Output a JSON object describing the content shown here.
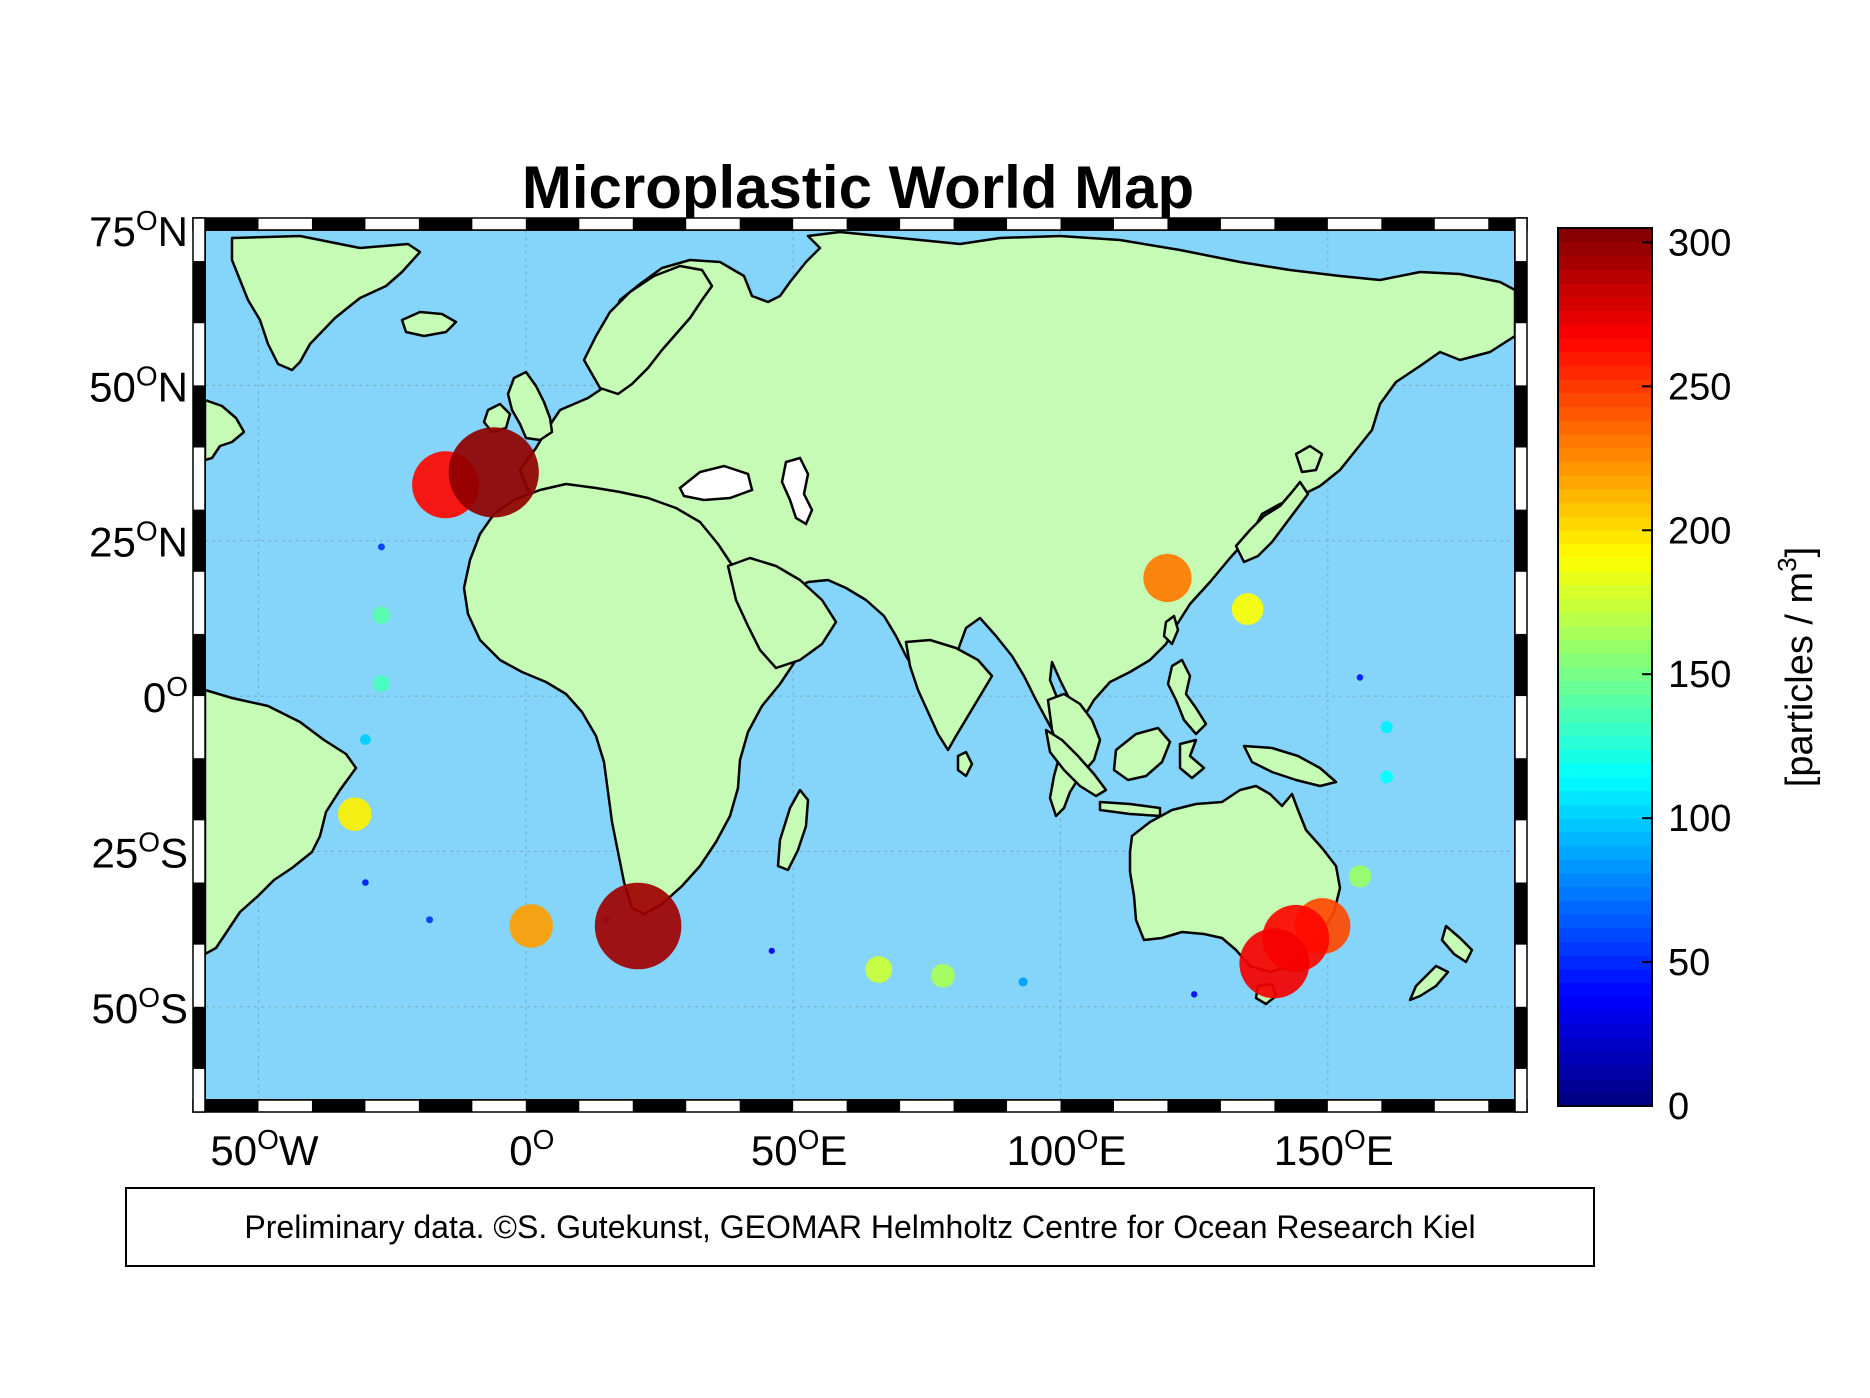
{
  "title": "Microplastic World Map",
  "credit": "Preliminary data. ©S. Gutekunst, GEOMAR Helmholtz Centre for Ocean Research Kiel",
  "colors": {
    "ocean": "#84d5f9",
    "land": "#c6fbb5",
    "coast": "#000000",
    "lake": "#ffffff"
  },
  "map": {
    "lon_range": [
      -60,
      185
    ],
    "lat_range": [
      -65,
      75
    ],
    "lon_ticks": [
      {
        "value": -50,
        "num": "50",
        "sup": "O",
        "hem": "W"
      },
      {
        "value": 0,
        "num": "0",
        "sup": "O",
        "hem": ""
      },
      {
        "value": 50,
        "num": "50",
        "sup": "O",
        "hem": "E"
      },
      {
        "value": 100,
        "num": "100",
        "sup": "O",
        "hem": "E"
      },
      {
        "value": 150,
        "num": "150",
        "sup": "O",
        "hem": "E"
      }
    ],
    "lat_ticks": [
      {
        "value": 75,
        "num": "75",
        "sup": "O",
        "hem": "N"
      },
      {
        "value": 50,
        "num": "50",
        "sup": "O",
        "hem": "N"
      },
      {
        "value": 25,
        "num": "25",
        "sup": "O",
        "hem": "N"
      },
      {
        "value": 0,
        "num": "0",
        "sup": "O",
        "hem": ""
      },
      {
        "value": -25,
        "num": "25",
        "sup": "O",
        "hem": "S"
      },
      {
        "value": -50,
        "num": "50",
        "sup": "O",
        "hem": "S"
      }
    ],
    "grid": true
  },
  "colorbar": {
    "min": 0,
    "max": 305,
    "ticks": [
      0,
      50,
      100,
      150,
      200,
      250,
      300
    ],
    "label_prefix": "[particles / m",
    "label_sup": "3",
    "label_suffix": "]",
    "colormap": "jet",
    "levels": 64
  },
  "chart_data": {
    "type": "scatter",
    "title": "Microplastic World Map",
    "encoding": "bubble size and color = concentration",
    "points": [
      {
        "lon": -6,
        "lat": 36,
        "value": 300
      },
      {
        "lon": -15,
        "lat": 34,
        "value": 265
      },
      {
        "lon": 21,
        "lat": -37,
        "value": 295
      },
      {
        "lon": -27,
        "lat": 24,
        "value": 55
      },
      {
        "lon": -27,
        "lat": 13,
        "value": 140
      },
      {
        "lon": -27,
        "lat": 2,
        "value": 135
      },
      {
        "lon": -30,
        "lat": -7,
        "value": 100
      },
      {
        "lon": -32,
        "lat": -19,
        "value": 195
      },
      {
        "lon": -30,
        "lat": -30,
        "value": 45
      },
      {
        "lon": -18,
        "lat": -36,
        "value": 55
      },
      {
        "lon": 1,
        "lat": -37,
        "value": 220
      },
      {
        "lon": 15,
        "lat": -36,
        "value": 70
      },
      {
        "lon": 46,
        "lat": -41,
        "value": 30
      },
      {
        "lon": 66,
        "lat": -44,
        "value": 175
      },
      {
        "lon": 78,
        "lat": -45,
        "value": 165
      },
      {
        "lon": 93,
        "lat": -46,
        "value": 85
      },
      {
        "lon": 120,
        "lat": 19,
        "value": 230
      },
      {
        "lon": 135,
        "lat": 14,
        "value": 190
      },
      {
        "lon": 156,
        "lat": 3,
        "value": 45
      },
      {
        "lon": 161,
        "lat": -5,
        "value": 110
      },
      {
        "lon": 161,
        "lat": -13,
        "value": 115
      },
      {
        "lon": 156,
        "lat": -29,
        "value": 160
      },
      {
        "lon": 149,
        "lat": -37,
        "value": 245
      },
      {
        "lon": 144,
        "lat": -39,
        "value": 265
      },
      {
        "lon": 140,
        "lat": -43,
        "value": 270
      },
      {
        "lon": 125,
        "lat": -48,
        "value": 40
      }
    ]
  }
}
